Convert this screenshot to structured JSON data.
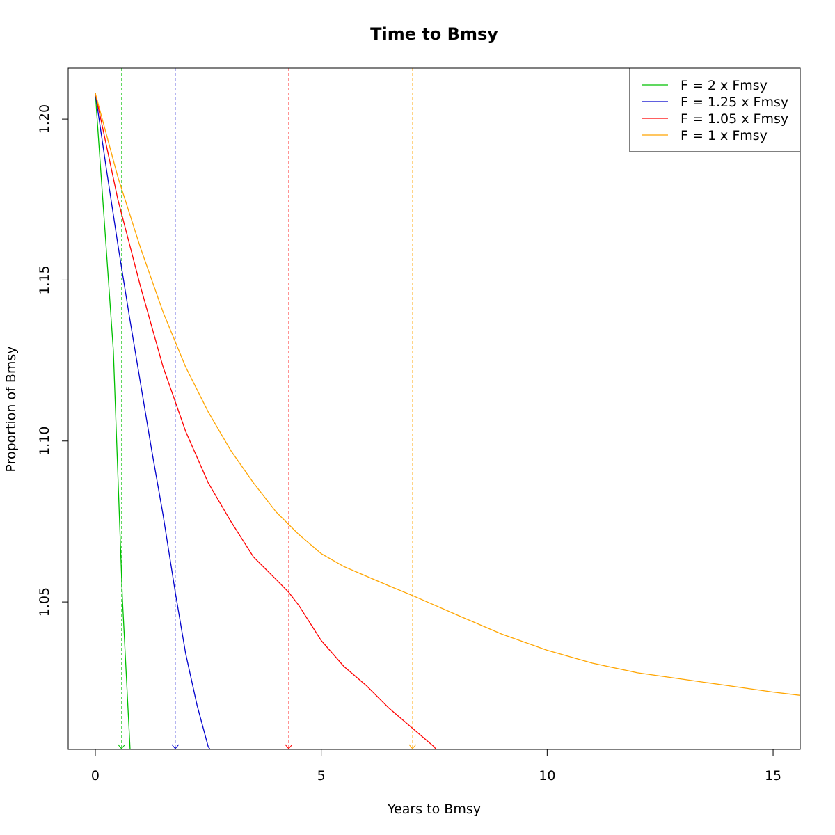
{
  "chart_data": {
    "type": "line",
    "title": "Time to Bmsy",
    "xlabel": "Years to Bmsy",
    "ylabel": "Proportion of Bmsy",
    "xlim": [
      -0.6,
      15.6
    ],
    "ylim": [
      1.0042,
      1.2158
    ],
    "x_ticks": [
      0,
      5,
      10,
      15
    ],
    "x_tick_labels": [
      "0",
      "5",
      "10",
      "15"
    ],
    "y_ticks": [
      1.05,
      1.1,
      1.15,
      1.2
    ],
    "y_tick_labels": [
      "1.05",
      "1.10",
      "1.15",
      "1.20"
    ],
    "grid": false,
    "reference_line": {
      "y": 1.0525,
      "color": "#d9d9d9"
    },
    "legend_position": "top-right",
    "series": [
      {
        "name": "F = 2 x Fmsy",
        "color": "#00c000",
        "bmsy_year": 0.58,
        "x": [
          0,
          0.2,
          0.4,
          0.6,
          0.77
        ],
        "y": [
          1.208,
          1.168,
          1.128,
          1.051,
          1.004
        ]
      },
      {
        "name": "F = 1.25 x Fmsy",
        "color": "#0000cc",
        "bmsy_year": 1.77,
        "x": [
          0,
          0.25,
          0.5,
          0.75,
          1.0,
          1.25,
          1.5,
          1.77,
          2.0,
          2.25,
          2.5,
          2.55
        ],
        "y": [
          1.208,
          1.184,
          1.161,
          1.139,
          1.118,
          1.097,
          1.077,
          1.053,
          1.034,
          1.018,
          1.005,
          1.004
        ]
      },
      {
        "name": "F = 1.05 x Fmsy",
        "color": "#ff0000",
        "bmsy_year": 4.28,
        "x": [
          0,
          0.5,
          1.0,
          1.5,
          2.0,
          2.5,
          3.0,
          3.5,
          4.0,
          4.28,
          4.5,
          5.0,
          5.5,
          6.0,
          6.5,
          7.0,
          7.5,
          7.55
        ],
        "y": [
          1.208,
          1.175,
          1.148,
          1.123,
          1.103,
          1.087,
          1.075,
          1.064,
          1.057,
          1.053,
          1.049,
          1.038,
          1.03,
          1.024,
          1.017,
          1.011,
          1.005,
          1.004
        ]
      },
      {
        "name": "F = 1 x Fmsy",
        "color": "#ffa500",
        "bmsy_year": 7.02,
        "x": [
          0,
          0.5,
          1.0,
          1.5,
          2.0,
          2.5,
          3.0,
          3.5,
          4.0,
          4.5,
          5.0,
          5.5,
          6.0,
          6.5,
          7.02,
          8.0,
          9.0,
          10.0,
          11.0,
          12.0,
          13.0,
          14.0,
          15.0,
          15.6
        ],
        "y": [
          1.208,
          1.182,
          1.16,
          1.14,
          1.123,
          1.109,
          1.097,
          1.087,
          1.078,
          1.071,
          1.065,
          1.061,
          1.058,
          1.055,
          1.052,
          1.046,
          1.04,
          1.035,
          1.031,
          1.028,
          1.026,
          1.024,
          1.022,
          1.021
        ]
      }
    ]
  }
}
